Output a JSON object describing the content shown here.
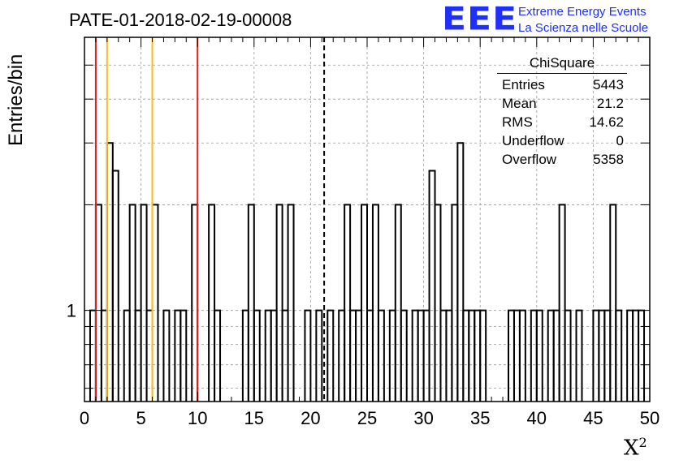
{
  "chart_data": {
    "type": "histogram",
    "title": "PATE-01-2018-02-19-00008",
    "xlabel": "X",
    "xlabel_superscript": "2",
    "ylabel": "Entries/bin",
    "xlim": [
      0,
      50
    ],
    "ylim": [
      0.55,
      6
    ],
    "log_y": true,
    "grid": true,
    "bin_width": 0.5,
    "x_ticks": [
      "0",
      "5",
      "10",
      "15",
      "20",
      "25",
      "30",
      "35",
      "40",
      "45",
      "50"
    ],
    "y_tick_labels": [
      "1"
    ],
    "bins": [
      {
        "x": 0.5,
        "y": 1
      },
      {
        "x": 1.0,
        "y": 2
      },
      {
        "x": 1.5,
        "y": 1
      },
      {
        "x": 2.0,
        "y": 3
      },
      {
        "x": 2.5,
        "y": 2.5
      },
      {
        "x": 3.5,
        "y": 1
      },
      {
        "x": 4.0,
        "y": 2
      },
      {
        "x": 4.5,
        "y": 1
      },
      {
        "x": 5.0,
        "y": 2
      },
      {
        "x": 5.5,
        "y": 1
      },
      {
        "x": 6.0,
        "y": 2
      },
      {
        "x": 7.0,
        "y": 1
      },
      {
        "x": 8.0,
        "y": 1
      },
      {
        "x": 8.5,
        "y": 1
      },
      {
        "x": 9.5,
        "y": 2
      },
      {
        "x": 11.0,
        "y": 2
      },
      {
        "x": 11.5,
        "y": 1
      },
      {
        "x": 14.0,
        "y": 1
      },
      {
        "x": 14.5,
        "y": 2
      },
      {
        "x": 15.0,
        "y": 1
      },
      {
        "x": 16.0,
        "y": 1
      },
      {
        "x": 16.5,
        "y": 1
      },
      {
        "x": 17.0,
        "y": 2
      },
      {
        "x": 17.5,
        "y": 1
      },
      {
        "x": 18.0,
        "y": 2
      },
      {
        "x": 19.5,
        "y": 1
      },
      {
        "x": 20.5,
        "y": 1
      },
      {
        "x": 21.5,
        "y": 1
      },
      {
        "x": 22.5,
        "y": 1
      },
      {
        "x": 23.0,
        "y": 2
      },
      {
        "x": 23.5,
        "y": 1
      },
      {
        "x": 24.0,
        "y": 1
      },
      {
        "x": 24.5,
        "y": 2
      },
      {
        "x": 25.0,
        "y": 1
      },
      {
        "x": 25.5,
        "y": 2
      },
      {
        "x": 26.0,
        "y": 1
      },
      {
        "x": 27.0,
        "y": 1
      },
      {
        "x": 27.5,
        "y": 2
      },
      {
        "x": 28.0,
        "y": 1
      },
      {
        "x": 29.0,
        "y": 1
      },
      {
        "x": 29.5,
        "y": 1
      },
      {
        "x": 30.0,
        "y": 1
      },
      {
        "x": 30.5,
        "y": 2.5
      },
      {
        "x": 31.0,
        "y": 2
      },
      {
        "x": 31.5,
        "y": 1
      },
      {
        "x": 32.0,
        "y": 1
      },
      {
        "x": 32.5,
        "y": 2
      },
      {
        "x": 33.0,
        "y": 3
      },
      {
        "x": 33.5,
        "y": 1
      },
      {
        "x": 34.0,
        "y": 1
      },
      {
        "x": 34.5,
        "y": 1
      },
      {
        "x": 35.0,
        "y": 1
      },
      {
        "x": 37.5,
        "y": 1
      },
      {
        "x": 38.0,
        "y": 1
      },
      {
        "x": 38.5,
        "y": 1
      },
      {
        "x": 39.5,
        "y": 1
      },
      {
        "x": 40.0,
        "y": 1
      },
      {
        "x": 41.0,
        "y": 1
      },
      {
        "x": 41.5,
        "y": 1
      },
      {
        "x": 42.0,
        "y": 2
      },
      {
        "x": 42.5,
        "y": 1
      },
      {
        "x": 43.5,
        "y": 1
      },
      {
        "x": 45.0,
        "y": 1
      },
      {
        "x": 45.5,
        "y": 1
      },
      {
        "x": 46.0,
        "y": 1
      },
      {
        "x": 46.5,
        "y": 2
      },
      {
        "x": 47.0,
        "y": 1
      },
      {
        "x": 48.0,
        "y": 1
      },
      {
        "x": 48.5,
        "y": 1
      },
      {
        "x": 49.0,
        "y": 1
      }
    ],
    "reference_lines": [
      {
        "x": 1,
        "color": "#e01f1f",
        "style": "solid"
      },
      {
        "x": 2,
        "color": "#f2c01a",
        "style": "solid"
      },
      {
        "x": 6,
        "color": "#f2c01a",
        "style": "solid"
      },
      {
        "x": 10,
        "color": "#e01f1f",
        "style": "solid"
      },
      {
        "x": 21.2,
        "color": "#000000",
        "style": "dashed"
      }
    ],
    "stats_box": {
      "title": "ChiSquare",
      "placement": "top-right",
      "rows": [
        {
          "label": "Entries",
          "value": "5443"
        },
        {
          "label": "Mean",
          "value": "21.2"
        },
        {
          "label": "RMS",
          "value": "14.62"
        },
        {
          "label": "Underflow",
          "value": "0"
        },
        {
          "label": "Overflow",
          "value": "5358"
        }
      ]
    }
  },
  "logo": {
    "mark": "EEE",
    "line1": "Extreme Energy Events",
    "line2": "La Scienza nelle Scuole",
    "color": "#1f2fff"
  }
}
